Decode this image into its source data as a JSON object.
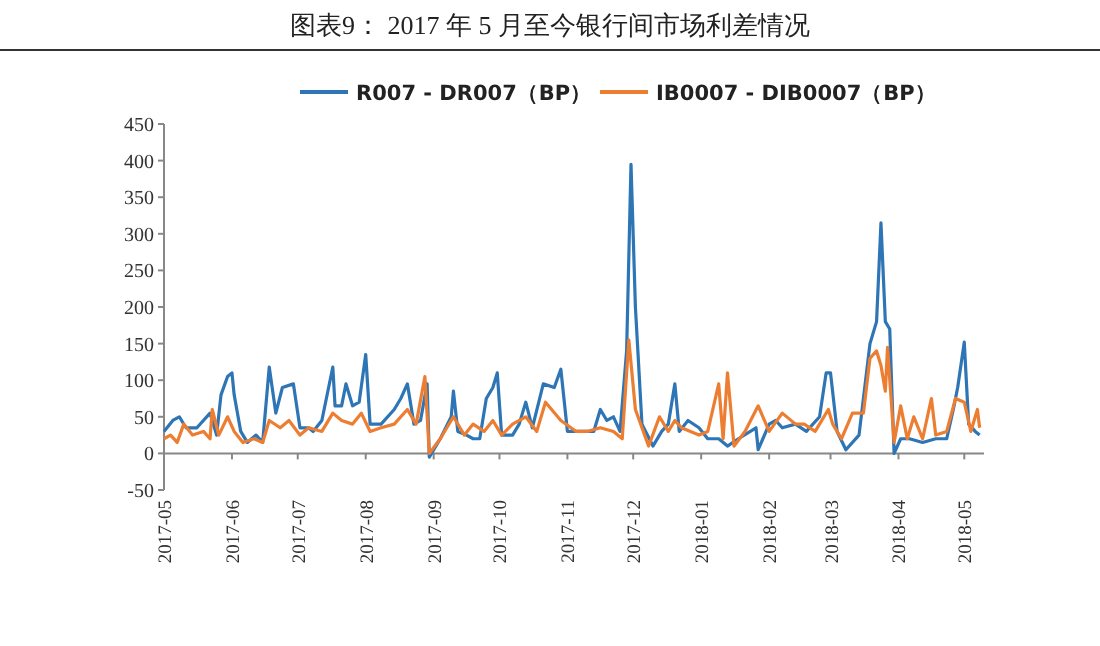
{
  "chart_data": {
    "type": "line",
    "title": "图表9：  2017 年 5 月至今银行间市场利差情况",
    "legend": "top",
    "xlim": [
      "2017-05-01",
      "2018-05-10"
    ],
    "xticks": [
      "2017-05",
      "2017-06",
      "2017-07",
      "2017-08",
      "2017-09",
      "2017-10",
      "2017-11",
      "2017-12",
      "2018-01",
      "2018-02",
      "2018-03",
      "2018-04",
      "2018-05"
    ],
    "ylim": [
      -50,
      450
    ],
    "yticks": [
      -50,
      0,
      50,
      100,
      150,
      200,
      250,
      300,
      350,
      400,
      450
    ],
    "series": [
      {
        "name": "R007 - DR007（BP）",
        "color": "#2e75b6",
        "x": [
          "2017-05-01",
          "2017-05-05",
          "2017-05-08",
          "2017-05-11",
          "2017-05-16",
          "2017-05-22",
          "2017-05-25",
          "2017-05-27",
          "2017-05-30",
          "2017-06-01",
          "2017-06-02",
          "2017-06-05",
          "2017-06-08",
          "2017-06-12",
          "2017-06-15",
          "2017-06-18",
          "2017-06-21",
          "2017-06-24",
          "2017-06-29",
          "2017-07-02",
          "2017-07-06",
          "2017-07-08",
          "2017-07-12",
          "2017-07-17",
          "2017-07-18",
          "2017-07-21",
          "2017-07-23",
          "2017-07-26",
          "2017-07-29",
          "2017-08-01",
          "2017-08-03",
          "2017-08-08",
          "2017-08-14",
          "2017-08-17",
          "2017-08-20",
          "2017-08-23",
          "2017-08-26",
          "2017-08-29",
          "2017-08-30",
          "2017-09-04",
          "2017-09-09",
          "2017-09-10",
          "2017-09-12",
          "2017-09-16",
          "2017-09-19",
          "2017-09-22",
          "2017-09-25",
          "2017-09-28",
          "2017-09-30",
          "2017-10-02",
          "2017-10-07",
          "2017-10-10",
          "2017-10-13",
          "2017-10-16",
          "2017-10-21",
          "2017-10-26",
          "2017-10-29",
          "2017-11-01",
          "2017-11-05",
          "2017-11-07",
          "2017-11-13",
          "2017-11-16",
          "2017-11-19",
          "2017-11-22",
          "2017-11-25",
          "2017-11-28",
          "2017-11-30",
          "2017-12-02",
          "2017-12-05",
          "2017-12-10",
          "2017-12-14",
          "2017-12-17",
          "2017-12-20",
          "2017-12-22",
          "2017-12-26",
          "2017-12-31",
          "2018-01-04",
          "2018-01-09",
          "2018-01-13",
          "2018-01-18",
          "2018-01-26",
          "2018-01-27",
          "2018-02-01",
          "2018-02-04",
          "2018-02-07",
          "2018-02-13",
          "2018-02-18",
          "2018-02-24",
          "2018-02-27",
          "2018-03-01",
          "2018-03-04",
          "2018-03-08",
          "2018-03-14",
          "2018-03-19",
          "2018-03-22",
          "2018-03-24",
          "2018-03-26",
          "2018-03-28",
          "2018-03-30",
          "2018-04-02",
          "2018-04-06",
          "2018-04-12",
          "2018-04-18",
          "2018-04-23",
          "2018-04-26",
          "2018-04-28",
          "2018-05-01",
          "2018-05-03",
          "2018-05-06",
          "2018-05-08"
        ],
        "values": [
          30,
          45,
          50,
          35,
          35,
          55,
          25,
          80,
          105,
          110,
          80,
          30,
          15,
          25,
          15,
          118,
          55,
          90,
          95,
          35,
          35,
          30,
          45,
          118,
          65,
          65,
          95,
          65,
          70,
          135,
          40,
          40,
          60,
          75,
          95,
          40,
          45,
          95,
          -5,
          20,
          50,
          85,
          30,
          25,
          20,
          20,
          75,
          90,
          110,
          25,
          25,
          40,
          70,
          35,
          95,
          90,
          115,
          30,
          30,
          30,
          30,
          60,
          45,
          50,
          30,
          140,
          395,
          200,
          40,
          10,
          30,
          40,
          95,
          30,
          45,
          35,
          20,
          20,
          10,
          20,
          35,
          5,
          40,
          45,
          35,
          40,
          30,
          50,
          110,
          110,
          30,
          5,
          25,
          150,
          180,
          315,
          180,
          170,
          0,
          20,
          20,
          15,
          20,
          20,
          60,
          90,
          152,
          40,
          30,
          25
        ]
      },
      {
        "name": "IB0007 - DIB0007（BP）",
        "color": "#ed7d31",
        "x": [
          "2017-05-01",
          "2017-05-04",
          "2017-05-07",
          "2017-05-10",
          "2017-05-14",
          "2017-05-19",
          "2017-05-22",
          "2017-05-23",
          "2017-05-26",
          "2017-05-30",
          "2017-06-02",
          "2017-06-06",
          "2017-06-11",
          "2017-06-15",
          "2017-06-18",
          "2017-06-23",
          "2017-06-27",
          "2017-07-02",
          "2017-07-06",
          "2017-07-12",
          "2017-07-17",
          "2017-07-21",
          "2017-07-26",
          "2017-07-30",
          "2017-08-03",
          "2017-08-08",
          "2017-08-14",
          "2017-08-20",
          "2017-08-24",
          "2017-08-28",
          "2017-08-30",
          "2017-09-04",
          "2017-09-10",
          "2017-09-15",
          "2017-09-19",
          "2017-09-24",
          "2017-09-28",
          "2017-10-02",
          "2017-10-07",
          "2017-10-13",
          "2017-10-18",
          "2017-10-22",
          "2017-10-29",
          "2017-11-05",
          "2017-11-10",
          "2017-11-16",
          "2017-11-22",
          "2017-11-26",
          "2017-11-29",
          "2017-12-02",
          "2017-12-05",
          "2017-12-08",
          "2017-12-13",
          "2017-12-17",
          "2017-12-20",
          "2017-12-23",
          "2017-12-31",
          "2018-01-04",
          "2018-01-09",
          "2018-01-11",
          "2018-01-13",
          "2018-01-16",
          "2018-01-21",
          "2018-01-27",
          "2018-02-01",
          "2018-02-07",
          "2018-02-13",
          "2018-02-17",
          "2018-02-22",
          "2018-02-28",
          "2018-03-02",
          "2018-03-06",
          "2018-03-11",
          "2018-03-16",
          "2018-03-19",
          "2018-03-22",
          "2018-03-24",
          "2018-03-26",
          "2018-03-27",
          "2018-03-30",
          "2018-04-02",
          "2018-04-05",
          "2018-04-08",
          "2018-04-12",
          "2018-04-16",
          "2018-04-18",
          "2018-04-23",
          "2018-04-27",
          "2018-05-01",
          "2018-05-04",
          "2018-05-07",
          "2018-05-08"
        ],
        "values": [
          20,
          25,
          15,
          40,
          25,
          30,
          20,
          60,
          25,
          50,
          30,
          15,
          20,
          15,
          45,
          35,
          45,
          25,
          35,
          30,
          55,
          45,
          40,
          55,
          30,
          35,
          40,
          60,
          40,
          105,
          0,
          20,
          50,
          25,
          40,
          30,
          45,
          25,
          40,
          50,
          30,
          70,
          45,
          30,
          30,
          35,
          30,
          20,
          155,
          60,
          35,
          10,
          50,
          30,
          45,
          35,
          25,
          30,
          95,
          20,
          110,
          10,
          30,
          65,
          30,
          55,
          40,
          40,
          30,
          60,
          40,
          20,
          55,
          55,
          130,
          140,
          120,
          85,
          145,
          15,
          65,
          20,
          50,
          20,
          75,
          25,
          30,
          75,
          70,
          30,
          60,
          35
        ]
      }
    ]
  }
}
